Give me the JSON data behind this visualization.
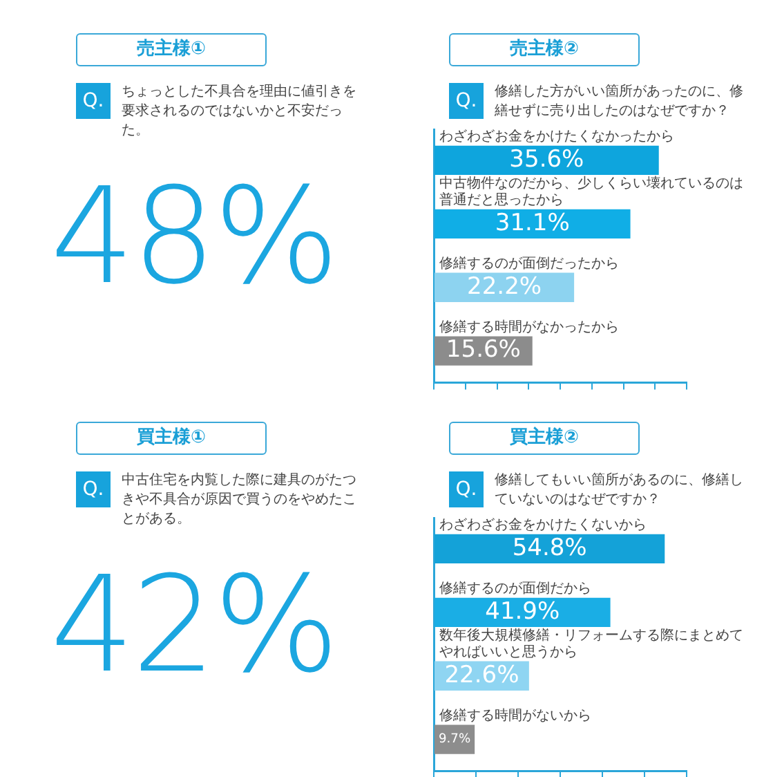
{
  "chart_data": [
    {
      "type": "other",
      "title": "売主様①",
      "subtitle": "ちょっとした不具合を理由に値引きを要求されるのではないかと不安だった。",
      "annotations": [
        "Q."
      ],
      "values": [
        48
      ],
      "value_labels": [
        "48%"
      ],
      "color": "#1ba6e0"
    },
    {
      "type": "bar",
      "orientation": "horizontal",
      "title": "売主様②",
      "subtitle": "修繕した方がいい箇所があったのに、修繕せずに売り出したのはなぜですか？",
      "annotations": [
        "Q."
      ],
      "categories": [
        "わざわざお金をかけたくなかったから",
        "中古物件なのだから、少しくらい壊れているのは普通だと思ったから",
        "修繕するのが面倒だったから",
        "修繕する時間がなかったから"
      ],
      "values": [
        35.6,
        31.1,
        22.2,
        15.6
      ],
      "colors": [
        "#0ea5dd",
        "#10aee6",
        "#8dd3f0",
        "#8c8c8c"
      ],
      "value_labels": [
        "35.6%",
        "31.1%",
        "22.2%",
        "15.6%"
      ],
      "xlim": [
        0,
        40
      ],
      "xticks": [
        {
          "value": 0,
          "label": null
        },
        {
          "value": 5,
          "label": null
        },
        {
          "value": 10,
          "label": null
        },
        {
          "value": 15,
          "label": null
        },
        {
          "value": 20,
          "label": null
        },
        {
          "value": 25,
          "label": null
        },
        {
          "value": 30,
          "label": null
        },
        {
          "value": 35,
          "label": null
        },
        {
          "value": 40,
          "label": null
        }
      ]
    },
    {
      "type": "other",
      "title": "買主様①",
      "subtitle": "中古住宅を内覧した際に建具のがたつきや不具合が原因で買うのをやめたことがある。",
      "annotations": [
        "Q."
      ],
      "values": [
        42
      ],
      "value_labels": [
        "42%"
      ],
      "color": "#1ba6e0"
    },
    {
      "type": "bar",
      "orientation": "horizontal",
      "title": "買主様②",
      "subtitle": "修繕してもいい箇所があるのに、修繕していないのはなぜですか？",
      "annotations": [
        "Q."
      ],
      "categories": [
        "わざわざお金をかけたくないから",
        "修繕するのが面倒だから",
        "数年後大規模修繕・リフォームする際にまとめてやればいいと思うから",
        "修繕する時間がないから"
      ],
      "values": [
        54.8,
        41.9,
        22.6,
        9.7
      ],
      "colors": [
        "#14a2d8",
        "#1aaee5",
        "#8fd5f2",
        "#8d8d8d"
      ],
      "value_labels": [
        "54.8%",
        "41.9%",
        "22.6%",
        "9.7%"
      ],
      "xlim": [
        0,
        60
      ],
      "xticks": [
        {
          "value": 0,
          "label": null
        },
        {
          "value": 10,
          "label": null
        },
        {
          "value": 20,
          "label": null
        },
        {
          "value": 30,
          "label": null
        },
        {
          "value": 40,
          "label": null
        },
        {
          "value": 50,
          "label": null
        },
        {
          "value": 60,
          "label": null
        }
      ]
    }
  ]
}
